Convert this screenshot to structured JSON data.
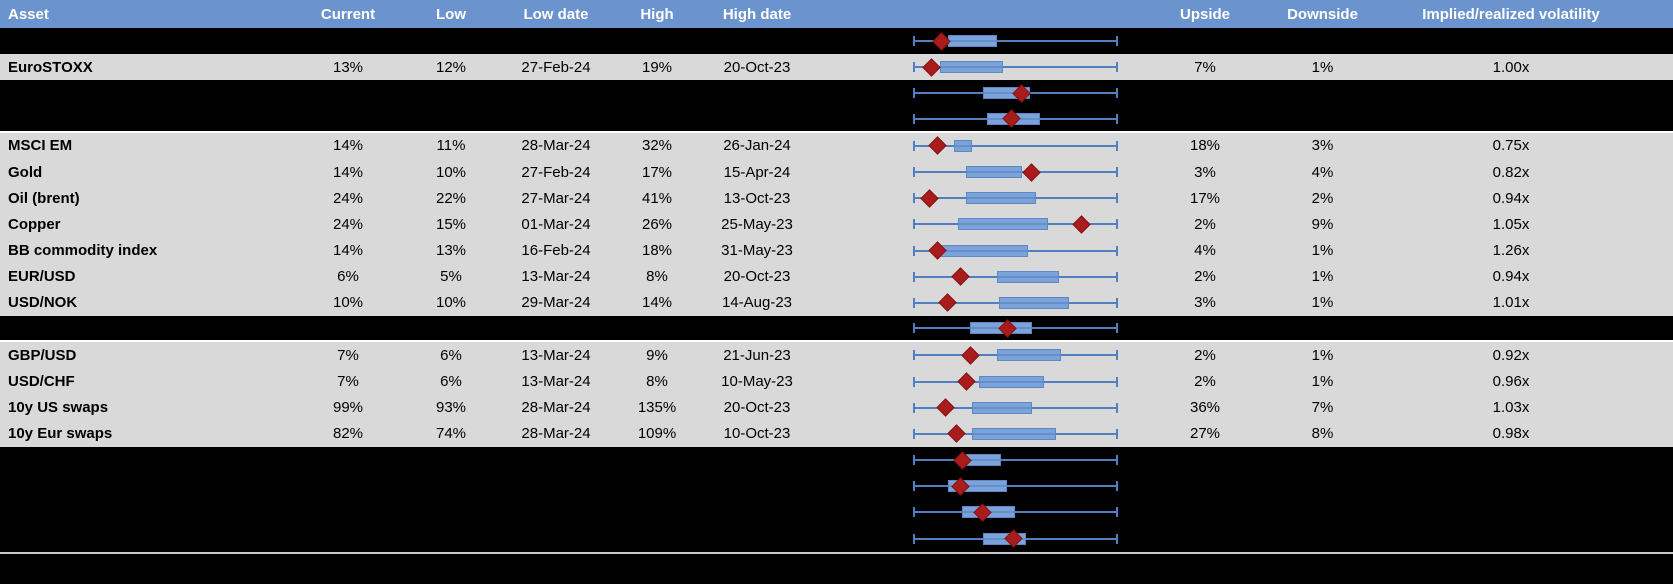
{
  "colors": {
    "header_bg": "#6b94ce",
    "header_text": "#ffffff",
    "data_row_bg": "#d9d9d9",
    "spacer_row_bg": "#000000",
    "whisker_blue": "#517fc1",
    "box_fill": "#7ba3da",
    "box_border": "#5d88c4",
    "diamond_red": "#a81c1c",
    "divider_gray": "#c9c9c9"
  },
  "header": {
    "columns": [
      {
        "key": "asset",
        "label": "Asset"
      },
      {
        "key": "current",
        "label": "Current"
      },
      {
        "key": "low",
        "label": "Low"
      },
      {
        "key": "low_date",
        "label": "Low date"
      },
      {
        "key": "high",
        "label": "High"
      },
      {
        "key": "high_date",
        "label": "High date"
      },
      {
        "key": "chart",
        "label": ""
      },
      {
        "key": "upside",
        "label": "Upside"
      },
      {
        "key": "downside",
        "label": "Downside"
      },
      {
        "key": "implied_realized",
        "label": "Implied/realized volatility"
      }
    ]
  },
  "rows": [
    {
      "type": "spacer",
      "box": {
        "d": 14,
        "b0": 17,
        "b1": 41
      }
    },
    {
      "type": "data",
      "asset": "EuroSTOXX",
      "current": "13%",
      "low": "12%",
      "low_date": "27-Feb-24",
      "high": "19%",
      "high_date": "20-Oct-23",
      "upside": "7%",
      "downside": "1%",
      "implied_realized": "1.00x",
      "box": {
        "d": 9,
        "b0": 13,
        "b1": 44
      }
    },
    {
      "type": "spacer",
      "box": {
        "d": 53,
        "b0": 34,
        "b1": 57
      }
    },
    {
      "type": "spacer",
      "sep": true,
      "box": {
        "d": 48,
        "b0": 36,
        "b1": 62
      }
    },
    {
      "type": "data",
      "asset": "MSCI EM",
      "current": "14%",
      "low": "11%",
      "low_date": "28-Mar-24",
      "high": "32%",
      "high_date": "26-Jan-24",
      "upside": "18%",
      "downside": "3%",
      "implied_realized": "0.75x",
      "box": {
        "d": 12,
        "b0": 20,
        "b1": 29
      }
    },
    {
      "type": "data",
      "asset": "Gold",
      "current": "14%",
      "low": "10%",
      "low_date": "27-Feb-24",
      "high": "17%",
      "high_date": "15-Apr-24",
      "upside": "3%",
      "downside": "4%",
      "implied_realized": "0.82x",
      "box": {
        "d": 58,
        "b0": 26,
        "b1": 53
      }
    },
    {
      "type": "data",
      "asset": "Oil (brent)",
      "current": "24%",
      "low": "22%",
      "low_date": "27-Mar-24",
      "high": "41%",
      "high_date": "13-Oct-23",
      "upside": "17%",
      "downside": "2%",
      "implied_realized": "0.94x",
      "box": {
        "d": 8,
        "b0": 26,
        "b1": 60
      }
    },
    {
      "type": "data",
      "asset": "Copper",
      "current": "24%",
      "low": "15%",
      "low_date": "01-Mar-24",
      "high": "26%",
      "high_date": "25-May-23",
      "upside": "2%",
      "downside": "9%",
      "implied_realized": "1.05x",
      "box": {
        "d": 82,
        "b0": 22,
        "b1": 66
      }
    },
    {
      "type": "data",
      "asset": "BB commodity index",
      "current": "14%",
      "low": "13%",
      "low_date": "16-Feb-24",
      "high": "18%",
      "high_date": "31-May-23",
      "upside": "4%",
      "downside": "1%",
      "implied_realized": "1.26x",
      "box": {
        "d": 12,
        "b0": 13,
        "b1": 56
      }
    },
    {
      "type": "data",
      "asset": "EUR/USD",
      "current": "6%",
      "low": "5%",
      "low_date": "13-Mar-24",
      "high": "8%",
      "high_date": "20-Oct-23",
      "upside": "2%",
      "downside": "1%",
      "implied_realized": "0.94x",
      "box": {
        "d": 23,
        "b0": 41,
        "b1": 71
      }
    },
    {
      "type": "data",
      "asset": "USD/NOK",
      "current": "10%",
      "low": "10%",
      "low_date": "29-Mar-24",
      "high": "14%",
      "high_date": "14-Aug-23",
      "upside": "3%",
      "downside": "1%",
      "implied_realized": "1.01x",
      "box": {
        "d": 17,
        "b0": 42,
        "b1": 76
      }
    },
    {
      "type": "spacer",
      "sep": true,
      "box": {
        "d": 46,
        "b0": 28,
        "b1": 58
      }
    },
    {
      "type": "data",
      "asset": "GBP/USD",
      "current": "7%",
      "low": "6%",
      "low_date": "13-Mar-24",
      "high": "9%",
      "high_date": "21-Jun-23",
      "upside": "2%",
      "downside": "1%",
      "implied_realized": "0.92x",
      "box": {
        "d": 28,
        "b0": 41,
        "b1": 72
      }
    },
    {
      "type": "data",
      "asset": "USD/CHF",
      "current": "7%",
      "low": "6%",
      "low_date": "13-Mar-24",
      "high": "8%",
      "high_date": "10-May-23",
      "upside": "2%",
      "downside": "1%",
      "implied_realized": "0.96x",
      "box": {
        "d": 26,
        "b0": 32,
        "b1": 64
      }
    },
    {
      "type": "data",
      "asset": "10y US swaps",
      "current": "99%",
      "low": "93%",
      "low_date": "28-Mar-24",
      "high": "135%",
      "high_date": "20-Oct-23",
      "upside": "36%",
      "downside": "7%",
      "implied_realized": "1.03x",
      "box": {
        "d": 16,
        "b0": 29,
        "b1": 58
      }
    },
    {
      "type": "data",
      "asset": "10y Eur swaps",
      "current": "82%",
      "low": "74%",
      "low_date": "28-Mar-24",
      "high": "109%",
      "high_date": "10-Oct-23",
      "upside": "27%",
      "downside": "8%",
      "implied_realized": "0.98x",
      "box": {
        "d": 21,
        "b0": 29,
        "b1": 70
      }
    },
    {
      "type": "spacer",
      "box": {
        "d": 24,
        "b0": 26,
        "b1": 43
      }
    },
    {
      "type": "spacer",
      "box": {
        "d": 23,
        "b0": 17,
        "b1": 46
      }
    },
    {
      "type": "spacer",
      "box": {
        "d": 34,
        "b0": 24,
        "b1": 50
      }
    },
    {
      "type": "spacer",
      "box": {
        "d": 49,
        "b0": 34,
        "b1": 55
      }
    }
  ]
}
